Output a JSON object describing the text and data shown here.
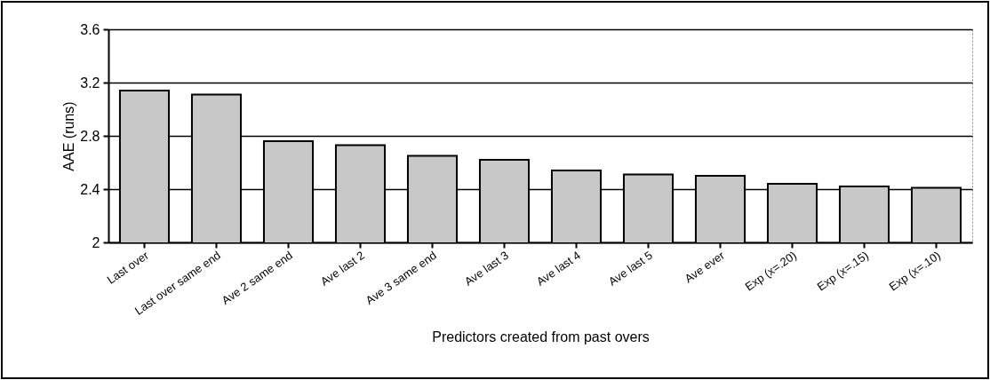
{
  "chart_data": {
    "type": "bar",
    "xlabel": "Predictors created from past overs",
    "ylabel": "AAE (runs)",
    "categories": [
      "Last over",
      "Last over same end",
      "Ave 2 same end",
      "Ave last 2",
      "Ave 3 same end",
      "Ave last 3",
      "Ave last 4",
      "Ave last 5",
      "Ave ever",
      "Exp (x=.20)",
      "Exp (x=.15)",
      "Exp (x=.10)"
    ],
    "values": [
      3.14,
      3.11,
      2.76,
      2.73,
      2.65,
      2.62,
      2.54,
      2.51,
      2.5,
      2.44,
      2.42,
      2.41
    ],
    "color": "#c8c8c8",
    "ylim": [
      2,
      3.6
    ],
    "yticks": [
      2,
      2.4,
      2.8,
      3.2,
      3.6
    ],
    "grid": "y"
  }
}
